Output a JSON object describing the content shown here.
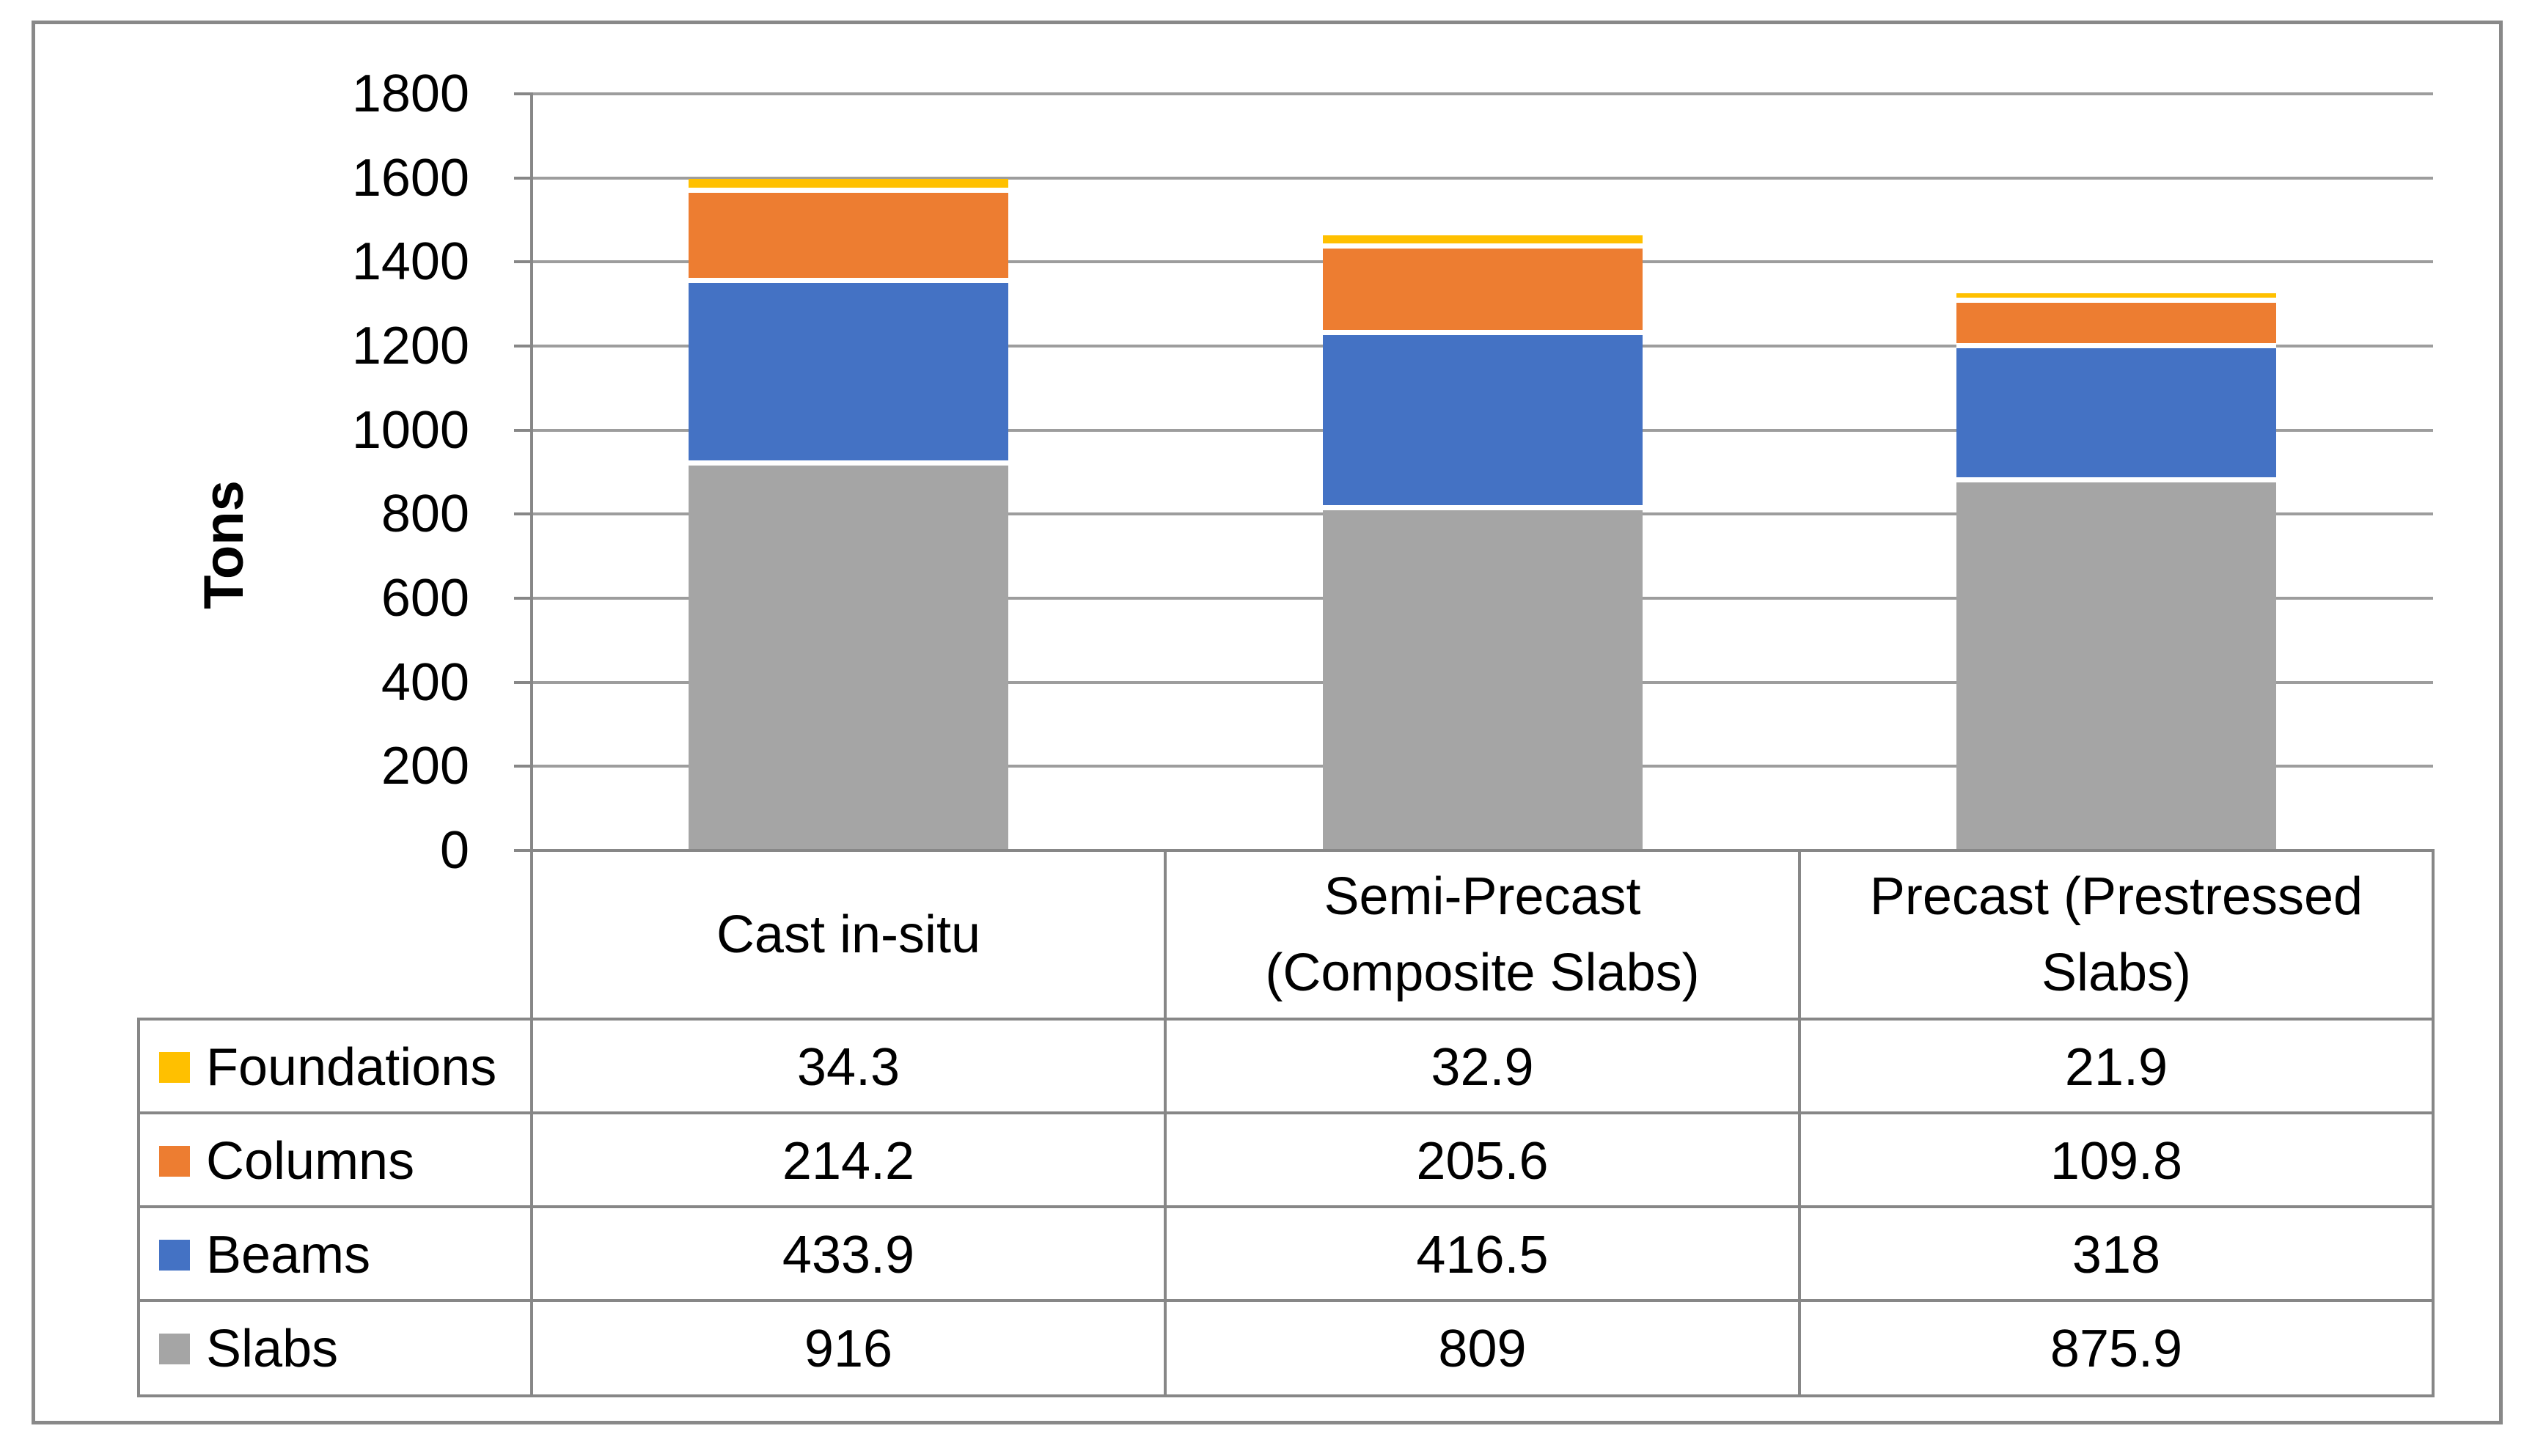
{
  "chart_data": {
    "type": "bar",
    "stacked": true,
    "ylabel": "Tons",
    "ylim": [
      0,
      1800
    ],
    "ytick_step": 200,
    "yticks": [
      0,
      200,
      400,
      600,
      800,
      1000,
      1200,
      1400,
      1600,
      1800
    ],
    "grid": true,
    "legend_position": "table-left",
    "categories": [
      "Cast in-situ",
      "Semi-Precast (Composite Slabs)",
      "Precast (Prestressed Slabs)"
    ],
    "series": [
      {
        "name": "Foundations",
        "color": "#FFC000",
        "values": [
          34.3,
          32.9,
          21.9
        ]
      },
      {
        "name": "Columns",
        "color": "#ED7D31",
        "values": [
          214.2,
          205.6,
          109.8
        ]
      },
      {
        "name": "Beams",
        "color": "#4472C4",
        "values": [
          433.9,
          416.5,
          318
        ]
      },
      {
        "name": "Slabs",
        "color": "#A5A5A5",
        "values": [
          916,
          809,
          875.9
        ]
      }
    ]
  },
  "table": {
    "column_headers": [
      {
        "lines": [
          "Cast in-situ",
          ""
        ]
      },
      {
        "lines": [
          "Semi-Precast",
          "(Composite Slabs)"
        ]
      },
      {
        "lines": [
          "Precast (Prestressed",
          "Slabs)"
        ]
      }
    ],
    "rows": [
      {
        "label": "Foundations",
        "swatch": "#FFC000",
        "values": [
          "34.3",
          "32.9",
          "21.9"
        ]
      },
      {
        "label": "Columns",
        "swatch": "#ED7D31",
        "values": [
          "214.2",
          "205.6",
          "109.8"
        ]
      },
      {
        "label": "Beams",
        "swatch": "#4472C4",
        "values": [
          "433.9",
          "416.5",
          "318"
        ]
      },
      {
        "label": "Slabs",
        "swatch": "#A5A5A5",
        "values": [
          "916",
          "809",
          "875.9"
        ]
      }
    ]
  },
  "colors": {
    "frame_border": "#898989",
    "table_border": "#878787",
    "gridline": "#9d9d9d",
    "text": "#000000",
    "background": "#ffffff"
  }
}
